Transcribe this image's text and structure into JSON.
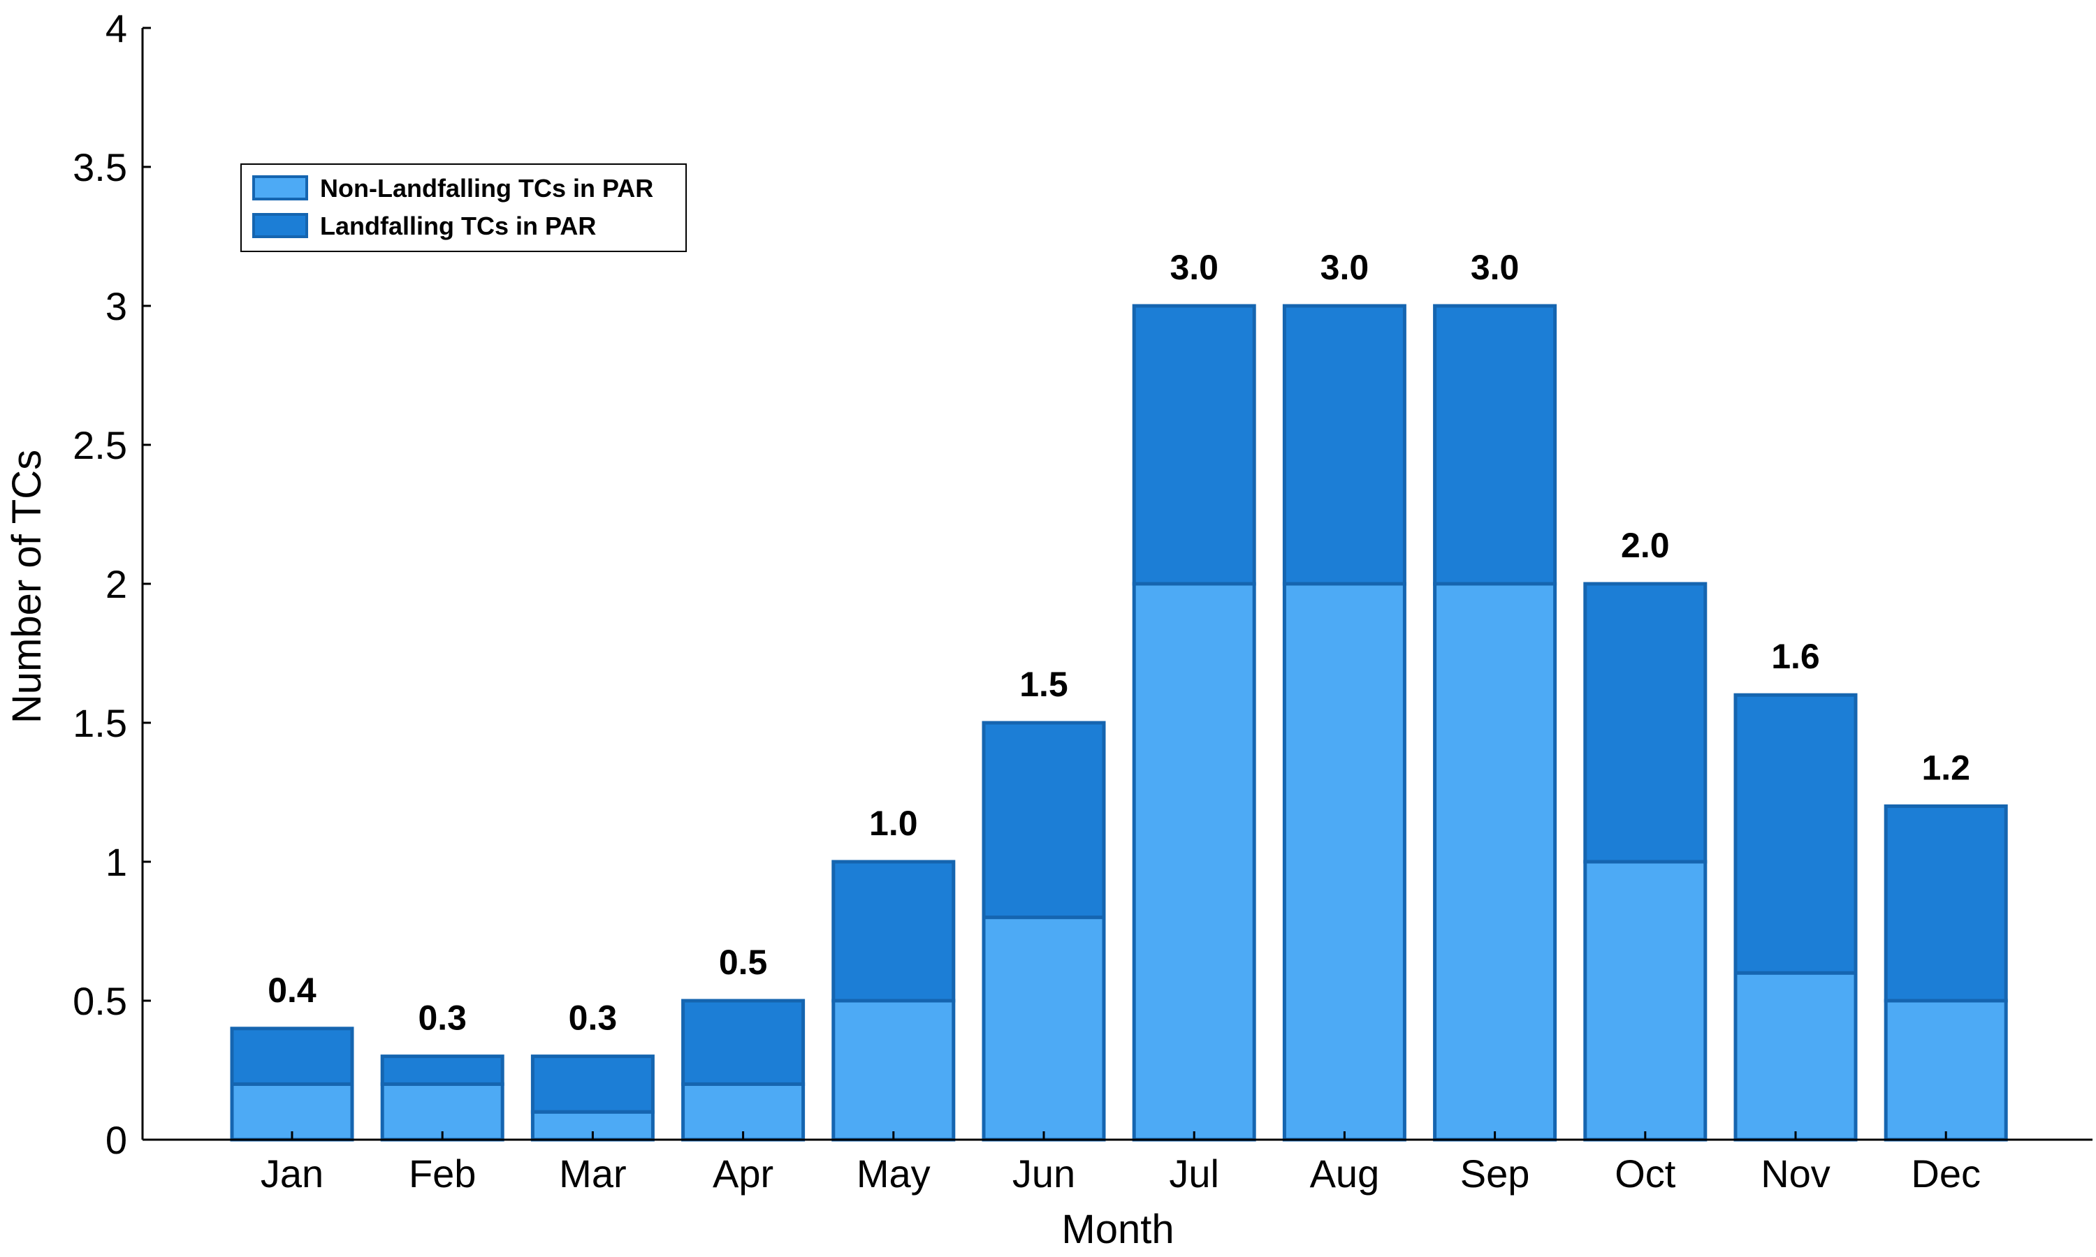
{
  "chart_data": {
    "type": "bar",
    "stacked": true,
    "categories": [
      "Jan",
      "Feb",
      "Mar",
      "Apr",
      "May",
      "Jun",
      "Jul",
      "Aug",
      "Sep",
      "Oct",
      "Nov",
      "Dec"
    ],
    "series": [
      {
        "name": "Non-Landfalling TCs in PAR",
        "color": "#4DAAF5",
        "values": [
          0.2,
          0.2,
          0.1,
          0.2,
          0.5,
          0.8,
          2.0,
          2.0,
          2.0,
          1.0,
          0.6,
          0.5
        ]
      },
      {
        "name": "Landfalling TCs in PAR",
        "color": "#1C7ED6",
        "values": [
          0.2,
          0.1,
          0.2,
          0.3,
          0.5,
          0.7,
          1.0,
          1.0,
          1.0,
          1.0,
          1.0,
          0.7
        ]
      }
    ],
    "totals_labels": [
      "0.4",
      "0.3",
      "0.3",
      "0.5",
      "1.0",
      "1.5",
      "3.0",
      "3.0",
      "3.0",
      "2.0",
      "1.6",
      "1.2"
    ],
    "xlabel": "Month",
    "ylabel": "Number of TCs",
    "ylim": [
      0,
      4
    ],
    "yticks": [
      0,
      0.5,
      1,
      1.5,
      2,
      2.5,
      3,
      3.5,
      4
    ],
    "ytick_labels": [
      "0",
      "0.5",
      "1",
      "1.5",
      "2",
      "2.5",
      "3",
      "3.5",
      "4"
    ],
    "bar_edge_color": "#1565B0",
    "grid": false,
    "legend_position": "top-left"
  }
}
